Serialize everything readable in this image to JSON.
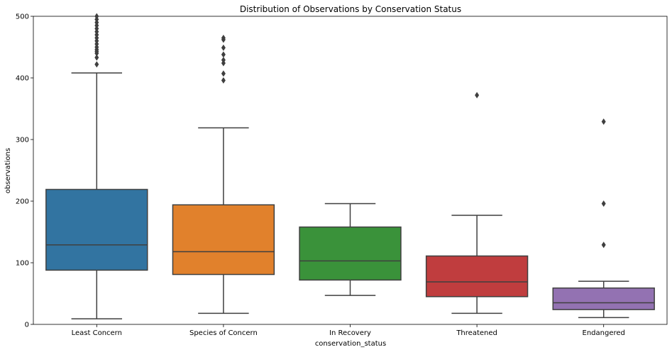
{
  "chart_data": {
    "type": "box",
    "title": "Distribution of Observations by Conservation Status",
    "xlabel": "conservation_status",
    "ylabel": "observations",
    "ylim": [
      0,
      500
    ],
    "yticks": [
      0,
      100,
      200,
      300,
      400,
      500
    ],
    "grid": false,
    "categories": [
      "Least Concern",
      "Species of Concern",
      "In Recovery",
      "Threatened",
      "Endangered"
    ],
    "colors": [
      "#3274a1",
      "#e1812c",
      "#3a923a",
      "#c03d3e",
      "#9372b2"
    ],
    "boxes": [
      {
        "whisker_low": 9,
        "q1": 88,
        "median": 129,
        "q3": 219,
        "whisker_high": 408,
        "outliers": [
          422,
          433,
          440,
          443,
          446,
          450,
          455,
          460,
          465,
          470,
          475,
          480,
          485,
          490,
          495,
          500
        ]
      },
      {
        "whisker_low": 18,
        "q1": 81,
        "median": 118,
        "q3": 194,
        "whisker_high": 319,
        "outliers": [
          396,
          407,
          424,
          429,
          438,
          449,
          462,
          465
        ]
      },
      {
        "whisker_low": 47,
        "q1": 72,
        "median": 103,
        "q3": 158,
        "whisker_high": 196,
        "outliers": []
      },
      {
        "whisker_low": 18,
        "q1": 45,
        "median": 69,
        "q3": 111,
        "whisker_high": 177,
        "outliers": [
          372
        ]
      },
      {
        "whisker_low": 11,
        "q1": 24,
        "median": 35,
        "q3": 59,
        "whisker_high": 70,
        "outliers": [
          129,
          196,
          329
        ]
      }
    ]
  }
}
